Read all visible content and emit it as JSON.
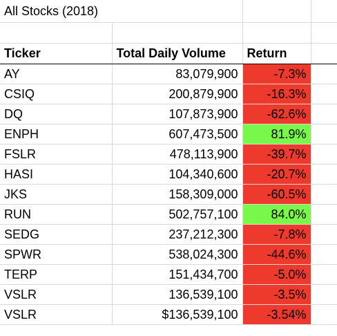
{
  "sheet": {
    "title": "All Stocks (2018)",
    "headers": {
      "ticker": "Ticker",
      "volume": "Total Daily Volume",
      "return": "Return"
    },
    "colors": {
      "negative": "#ee3a2c",
      "positive": "#79f74b",
      "gridline": "#d9d9d9"
    },
    "rows": [
      {
        "ticker": "AY",
        "volume": "83,079,900",
        "return": "-7.3%",
        "sign": "neg"
      },
      {
        "ticker": "CSIQ",
        "volume": "200,879,900",
        "return": "-16.3%",
        "sign": "neg"
      },
      {
        "ticker": "DQ",
        "volume": "107,873,900",
        "return": "-62.6%",
        "sign": "neg"
      },
      {
        "ticker": "ENPH",
        "volume": "607,473,500",
        "return": "81.9%",
        "sign": "pos"
      },
      {
        "ticker": "FSLR",
        "volume": "478,113,900",
        "return": "-39.7%",
        "sign": "neg"
      },
      {
        "ticker": "HASI",
        "volume": "104,340,600",
        "return": "-20.7%",
        "sign": "neg"
      },
      {
        "ticker": "JKS",
        "volume": "158,309,000",
        "return": "-60.5%",
        "sign": "neg"
      },
      {
        "ticker": "RUN",
        "volume": "502,757,100",
        "return": "84.0%",
        "sign": "pos"
      },
      {
        "ticker": "SEDG",
        "volume": "237,212,300",
        "return": "-7.8%",
        "sign": "neg"
      },
      {
        "ticker": "SPWR",
        "volume": "538,024,300",
        "return": "-44.6%",
        "sign": "neg"
      },
      {
        "ticker": "TERP",
        "volume": "151,434,700",
        "return": "-5.0%",
        "sign": "neg"
      },
      {
        "ticker": "VSLR",
        "volume": "136,539,100",
        "return": "-3.5%",
        "sign": "neg"
      },
      {
        "ticker": "VSLR",
        "volume": "$136,539,100",
        "return": "-3.54%",
        "sign": "neg"
      }
    ]
  }
}
